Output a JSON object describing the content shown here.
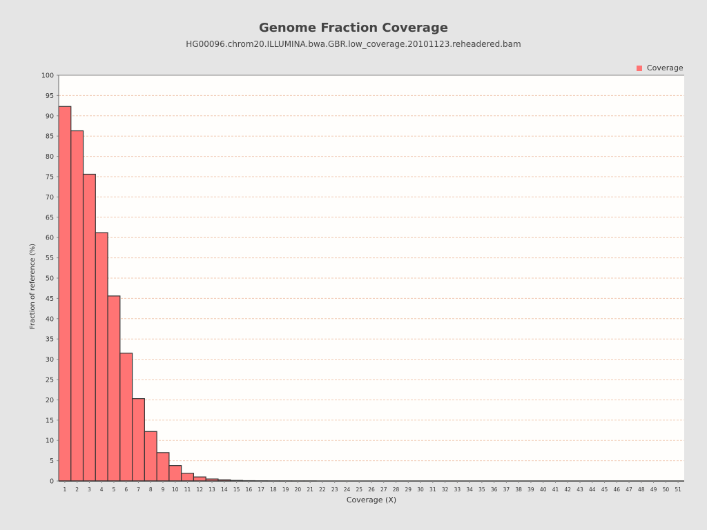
{
  "chart_data": {
    "type": "bar",
    "title": "Genome Fraction Coverage",
    "subtitle": "HG00096.chrom20.ILLUMINA.bwa.GBR.low_coverage.20101123.reheadered.bam",
    "xlabel": "Coverage (X)",
    "ylabel": "Fraction of reference (%)",
    "ylim": [
      0,
      100
    ],
    "ytick_step": 5,
    "legend_position": "top-right",
    "grid": true,
    "colors": {
      "bar": "#ff7474",
      "bar_edge": "#333333",
      "grid": "#f0c8b0",
      "plot_bg": "#fffefc",
      "page_bg": "#e5e5e5"
    },
    "categories": [
      "1",
      "2",
      "3",
      "4",
      "5",
      "6",
      "7",
      "8",
      "9",
      "10",
      "11",
      "12",
      "13",
      "14",
      "15",
      "16",
      "17",
      "18",
      "19",
      "20",
      "21",
      "22",
      "23",
      "24",
      "25",
      "26",
      "27",
      "28",
      "29",
      "30",
      "31",
      "32",
      "33",
      "34",
      "35",
      "36",
      "37",
      "38",
      "39",
      "40",
      "41",
      "42",
      "43",
      "44",
      "45",
      "46",
      "47",
      "48",
      "49",
      "50",
      "51"
    ],
    "series": [
      {
        "name": "Coverage",
        "values": [
          92.3,
          86.3,
          75.6,
          61.2,
          45.6,
          31.5,
          20.3,
          12.2,
          7.0,
          3.8,
          1.9,
          1.0,
          0.5,
          0.3,
          0.15,
          0.08,
          0.05,
          0.03,
          0.02,
          0.01,
          0.01,
          0,
          0,
          0,
          0,
          0,
          0,
          0,
          0,
          0,
          0,
          0,
          0,
          0,
          0,
          0,
          0,
          0,
          0,
          0,
          0,
          0,
          0,
          0,
          0,
          0,
          0,
          0,
          0,
          0,
          0
        ]
      }
    ]
  }
}
